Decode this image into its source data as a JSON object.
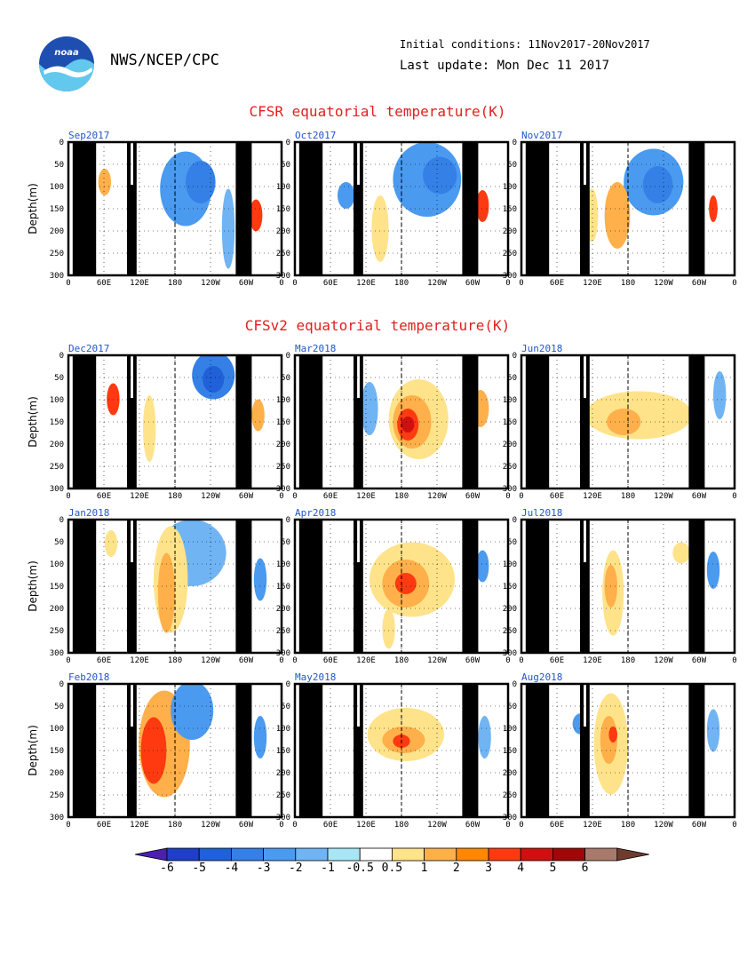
{
  "header": {
    "org": "NWS/NCEP/CPC",
    "initial_conditions": "Initial conditions: 11Nov2017-20Nov2017",
    "last_update": "Last update: Mon Dec 11 2017",
    "logo_text": "noaa"
  },
  "sections": [
    {
      "title": "CFSR equatorial temperature(K)",
      "panels": [
        "Sep2017",
        "Oct2017",
        "Nov2017"
      ]
    },
    {
      "title": "CFSv2 equatorial temperature(K)",
      "panels": [
        "Dec2017",
        "Mar2018",
        "Jun2018",
        "Jan2018",
        "Apr2018",
        "Jul2018",
        "Feb2018",
        "May2018",
        "Aug2018"
      ]
    }
  ],
  "chart_data": {
    "type": "heatmap",
    "xlabel": "",
    "ylabel": "Depth(m)",
    "x_ticks": [
      "0",
      "60E",
      "120E",
      "180",
      "120W",
      "60W",
      "0"
    ],
    "y_ticks": [
      "0",
      "50",
      "100",
      "150",
      "200",
      "250",
      "300"
    ],
    "ylim": [
      300,
      0
    ],
    "reference_lines": [
      "180"
    ],
    "colorbar": {
      "levels": [
        "-6",
        "-5",
        "-4",
        "-3",
        "-2",
        "-1",
        "-0.5",
        "0.5",
        "1",
        "2",
        "3",
        "4",
        "5",
        "6"
      ],
      "colors": [
        "#4b1fb0",
        "#1f3fc8",
        "#2060d8",
        "#3480e6",
        "#4a9af0",
        "#70b4f4",
        "#a8e6f6",
        "#ffffff",
        "#ffe38a",
        "#ffb04a",
        "#ff8800",
        "#ff3a10",
        "#d01010",
        "#a00808",
        "#a87a6c",
        "#6e3c2c"
      ]
    }
  }
}
